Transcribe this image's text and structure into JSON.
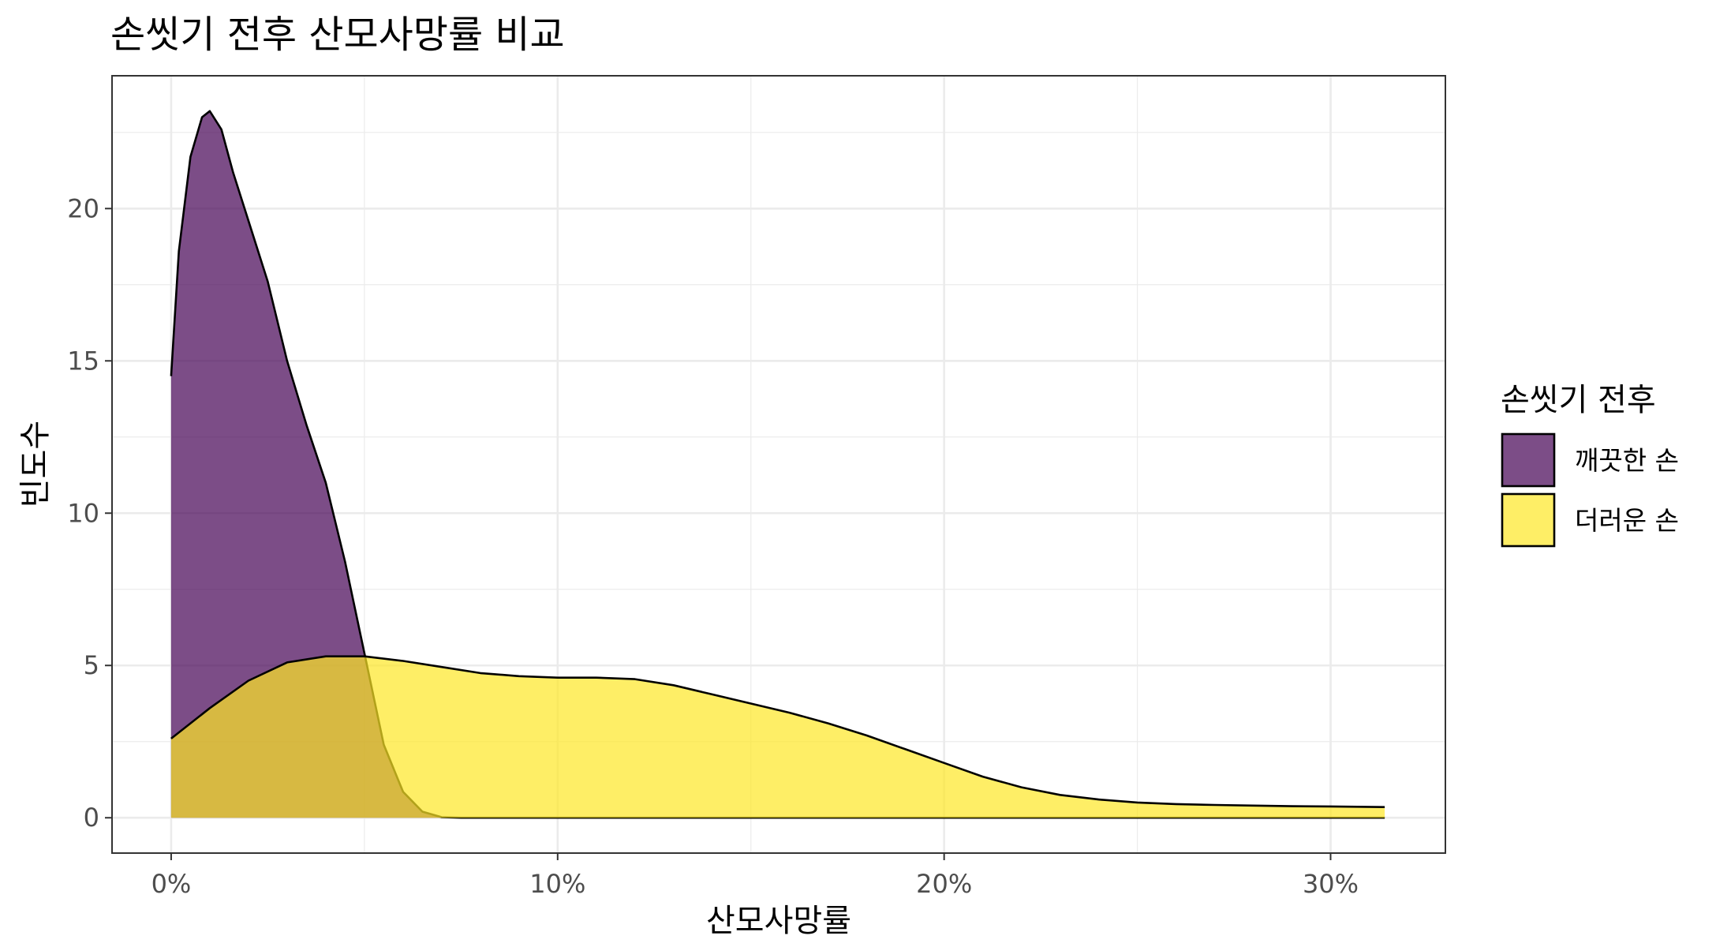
{
  "chart_data": {
    "type": "area",
    "title": "손씻기 전후 산모사망률 비교",
    "xlabel": "산모사망률",
    "ylabel": "빈도수",
    "xlim": [
      -0.0153,
      0.3297
    ],
    "ylim": [
      -1.16,
      24.36
    ],
    "x_ticks": [
      0,
      0.1,
      0.2,
      0.3
    ],
    "x_tick_labels": [
      "0%",
      "10%",
      "20%",
      "30%"
    ],
    "y_ticks": [
      0,
      5,
      10,
      15,
      20
    ],
    "y_tick_labels": [
      "0",
      "5",
      "10",
      "15",
      "20"
    ],
    "grid": true,
    "legend": {
      "title": "손씻기 전후",
      "position": "right"
    },
    "series": [
      {
        "name": "깨끗한 손",
        "color": "#440154",
        "opacity": 0.7,
        "points": [
          [
            0.0,
            14.5
          ],
          [
            0.002,
            18.6
          ],
          [
            0.005,
            21.7
          ],
          [
            0.008,
            23.0
          ],
          [
            0.01,
            23.2
          ],
          [
            0.013,
            22.6
          ],
          [
            0.016,
            21.2
          ],
          [
            0.02,
            19.6
          ],
          [
            0.025,
            17.6
          ],
          [
            0.03,
            15.0
          ],
          [
            0.035,
            12.9
          ],
          [
            0.04,
            11.0
          ],
          [
            0.045,
            8.4
          ],
          [
            0.05,
            5.4
          ],
          [
            0.055,
            2.4
          ],
          [
            0.06,
            0.85
          ],
          [
            0.065,
            0.2
          ],
          [
            0.07,
            0.02
          ],
          [
            0.075,
            0.0
          ],
          [
            0.1,
            0.0
          ],
          [
            0.15,
            0.0
          ],
          [
            0.2,
            0.0
          ],
          [
            0.25,
            0.0
          ],
          [
            0.3,
            0.0
          ],
          [
            0.314,
            0.0
          ]
        ]
      },
      {
        "name": "더러운 손",
        "color": "#FDE725",
        "opacity": 0.7,
        "points": [
          [
            0.0,
            2.6
          ],
          [
            0.01,
            3.6
          ],
          [
            0.02,
            4.5
          ],
          [
            0.03,
            5.1
          ],
          [
            0.04,
            5.3
          ],
          [
            0.05,
            5.3
          ],
          [
            0.06,
            5.15
          ],
          [
            0.07,
            4.95
          ],
          [
            0.08,
            4.75
          ],
          [
            0.09,
            4.65
          ],
          [
            0.1,
            4.6
          ],
          [
            0.11,
            4.6
          ],
          [
            0.12,
            4.55
          ],
          [
            0.13,
            4.35
          ],
          [
            0.14,
            4.05
          ],
          [
            0.15,
            3.75
          ],
          [
            0.16,
            3.45
          ],
          [
            0.17,
            3.1
          ],
          [
            0.18,
            2.7
          ],
          [
            0.19,
            2.25
          ],
          [
            0.2,
            1.8
          ],
          [
            0.21,
            1.35
          ],
          [
            0.22,
            1.0
          ],
          [
            0.23,
            0.75
          ],
          [
            0.24,
            0.6
          ],
          [
            0.25,
            0.5
          ],
          [
            0.26,
            0.45
          ],
          [
            0.27,
            0.42
          ],
          [
            0.28,
            0.4
          ],
          [
            0.29,
            0.38
          ],
          [
            0.3,
            0.37
          ],
          [
            0.314,
            0.35
          ]
        ]
      }
    ]
  }
}
